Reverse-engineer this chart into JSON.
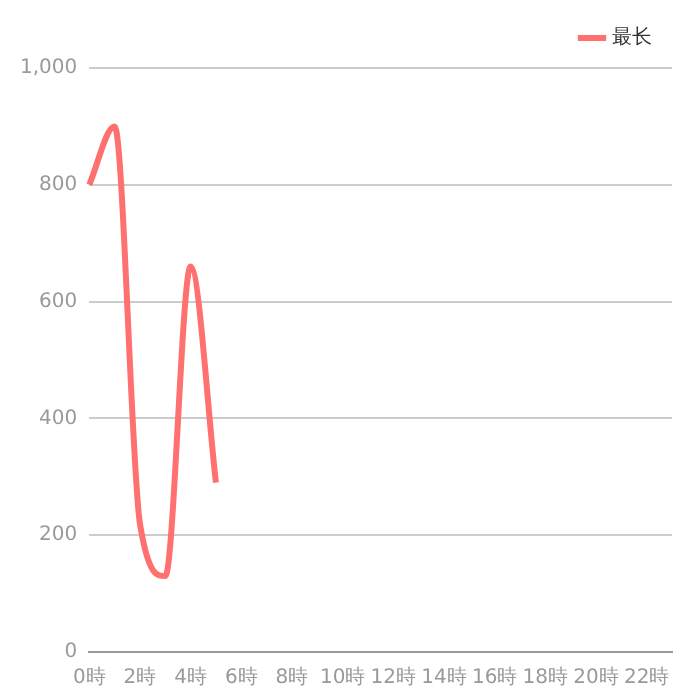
{
  "chart_data": {
    "type": "line",
    "categories": [
      "0時",
      null,
      "2時",
      null,
      "4時",
      null,
      "6時",
      null,
      "8時",
      null,
      "10時",
      null,
      "12時",
      null,
      "14時",
      null,
      "16時",
      null,
      "18時",
      null,
      "20時",
      null,
      "22時",
      null
    ],
    "series": [
      {
        "name": "最长",
        "color": "#ff7070",
        "values": [
          800,
          900,
          220,
          130,
          660,
          290,
          null,
          null,
          null,
          null,
          null,
          null,
          null,
          null,
          null,
          null,
          null,
          null,
          null,
          null,
          null,
          null,
          null,
          null
        ]
      }
    ],
    "ylim": [
      0,
      1000
    ],
    "yticks": [
      0,
      200,
      400,
      600,
      800,
      {
        "value": 1000,
        "label": "1,000"
      }
    ],
    "grid": "y",
    "legend": "top right",
    "marker": "none",
    "line_style": "solid"
  }
}
